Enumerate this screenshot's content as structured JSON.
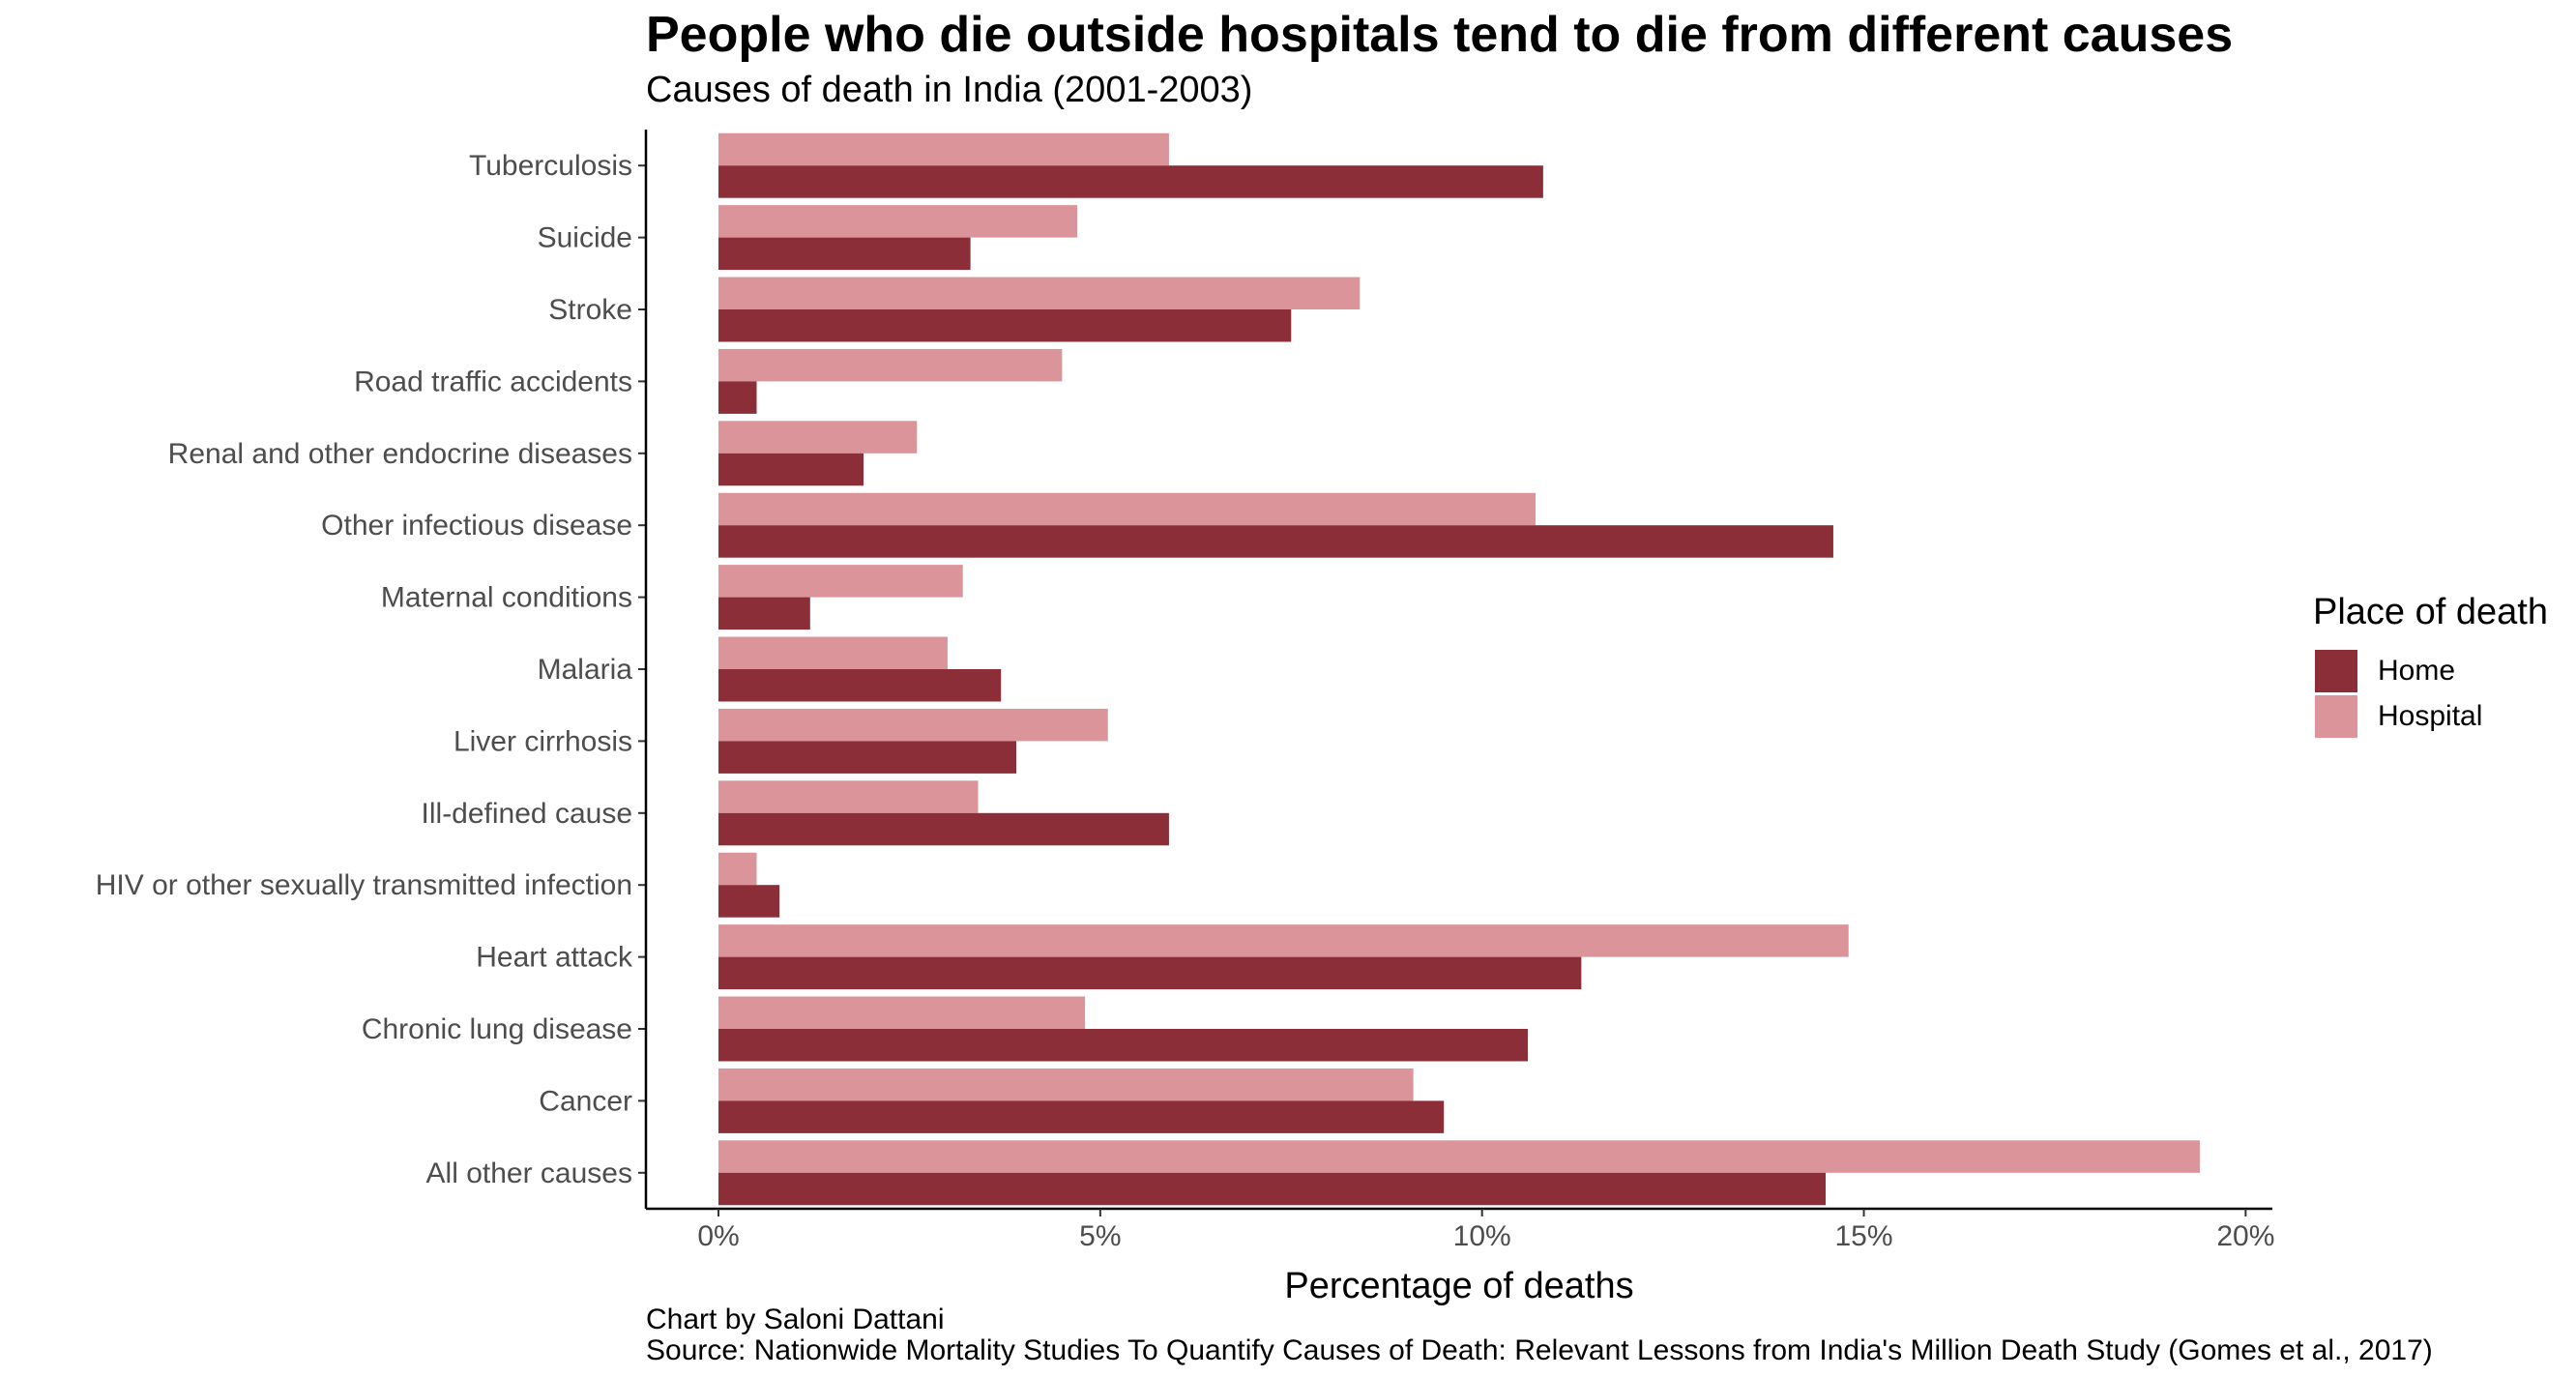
{
  "title": "People who die outside hospitals tend to die from different causes",
  "subtitle": "Causes of death in India (2001-2003)",
  "caption": {
    "line1": "Chart by Saloni Dattani",
    "line2": "Source: Nationwide Mortality Studies To Quantify Causes of Death: Relevant Lessons from India's Million Death Study (Gomes et al., 2017)"
  },
  "legend": {
    "title": "Place of death",
    "items": [
      {
        "label": "Home",
        "color": "#8b2e38"
      },
      {
        "label": "Hospital",
        "color": "#dc949b"
      }
    ]
  },
  "chart_data": {
    "type": "bar",
    "orientation": "horizontal",
    "categories": [
      "Tuberculosis",
      "Suicide",
      "Stroke",
      "Road traffic accidents",
      "Renal and other endocrine diseases",
      "Other infectious disease",
      "Maternal conditions",
      "Malaria",
      "Liver cirrhosis",
      "Ill-defined cause",
      "HIV or other sexually transmitted infection",
      "Heart attack",
      "Chronic lung disease",
      "Cancer",
      "All other causes"
    ],
    "series": [
      {
        "name": "Hospital",
        "color": "#dc949b",
        "values": [
          5.9,
          4.7,
          8.4,
          4.5,
          2.6,
          10.7,
          3.2,
          3.0,
          5.1,
          3.4,
          0.5,
          14.8,
          4.8,
          9.1,
          19.4
        ]
      },
      {
        "name": "Home",
        "color": "#8b2e38",
        "values": [
          10.8,
          3.3,
          7.5,
          0.5,
          1.9,
          14.6,
          1.2,
          3.7,
          3.9,
          5.9,
          0.8,
          11.3,
          10.6,
          9.5,
          14.5
        ]
      }
    ],
    "xlabel": "Percentage of deaths",
    "ylabel": "",
    "xlim": [
      -0.95,
      20.35
    ],
    "xticks": [
      0,
      5,
      10,
      15,
      20
    ],
    "xtick_labels": [
      "0%",
      "5%",
      "10%",
      "15%",
      "20%"
    ],
    "grid": false,
    "legend_position": "right"
  }
}
